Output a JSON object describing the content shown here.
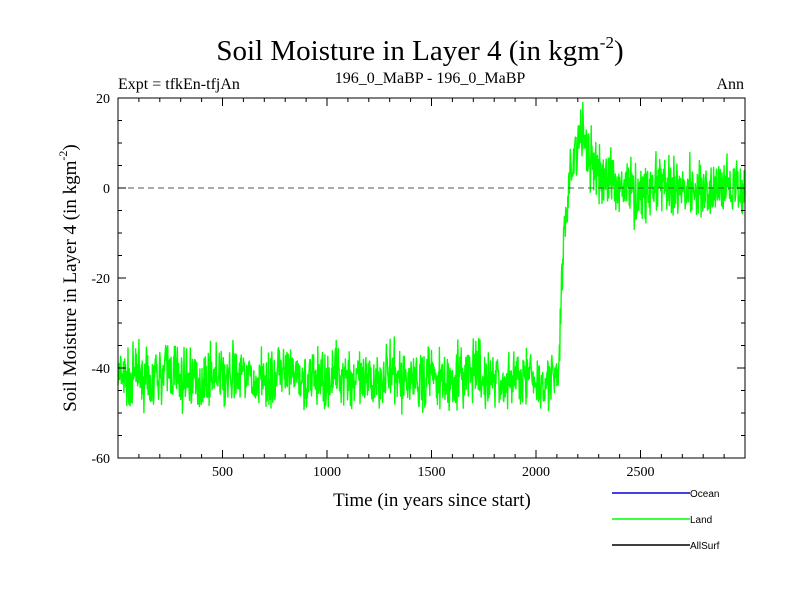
{
  "chart_data": {
    "type": "line",
    "title": "Soil Moisture in Layer 4 (in kgm",
    "title_sup": "-2",
    "title_close": ")",
    "subtitle": "196_0_MaBP - 196_0_MaBP",
    "left_note": "Expt = tfkEn-tfjAn",
    "right_note": "Ann",
    "xlabel": "Time (in years since start)",
    "ylabel": "Soil Moisture in Layer 4 (in kgm",
    "ylabel_sup": "-2",
    "ylabel_close": ")",
    "xlim": [
      0,
      3000
    ],
    "ylim": [
      -60,
      20
    ],
    "x_ticks": [
      500,
      1000,
      1500,
      2000,
      2500
    ],
    "y_ticks": [
      20,
      0,
      -20,
      -40,
      -60
    ],
    "reference_line": {
      "y": 0,
      "style": "dashed",
      "color": "#555555"
    },
    "legend_placement": "bottom-right",
    "series": [
      {
        "name": "Ocean",
        "color": "#0000dd",
        "x": [],
        "values": []
      },
      {
        "name": "Land",
        "color": "#00ff00",
        "x": [
          0,
          50,
          100,
          150,
          200,
          250,
          300,
          350,
          400,
          450,
          500,
          550,
          600,
          650,
          700,
          750,
          800,
          850,
          900,
          950,
          1000,
          1050,
          1100,
          1150,
          1200,
          1250,
          1300,
          1350,
          1400,
          1450,
          1500,
          1550,
          1600,
          1650,
          1700,
          1750,
          1800,
          1850,
          1900,
          1950,
          2000,
          2050,
          2080,
          2100,
          2110,
          2120,
          2130,
          2140,
          2150,
          2160,
          2170,
          2180,
          2200,
          2220,
          2240,
          2260,
          2280,
          2300,
          2350,
          2400,
          2450,
          2500,
          2550,
          2600,
          2650,
          2700,
          2750,
          2800,
          2850,
          2900,
          2950,
          3000
        ],
        "values": [
          -42,
          -43,
          -41,
          -44,
          -42,
          -40,
          -43,
          -42,
          -44,
          -41,
          -43,
          -42,
          -41,
          -44,
          -42,
          -43,
          -41,
          -42,
          -44,
          -42,
          -43,
          -41,
          -42,
          -43,
          -44,
          -42,
          -41,
          -43,
          -42,
          -44,
          -41,
          -43,
          -42,
          -42,
          -41,
          -43,
          -42,
          -44,
          -42,
          -41,
          -43,
          -42,
          -42,
          -44,
          -40,
          -25,
          -15,
          -8,
          -3,
          2,
          5,
          7,
          10,
          12,
          9,
          6,
          4,
          3,
          2,
          1,
          0,
          -1,
          0,
          1,
          -1,
          0,
          1,
          0,
          -1,
          1,
          0,
          -1
        ],
        "noise_amplitude": 4
      },
      {
        "name": "AllSurf",
        "color": "#000000",
        "x": [],
        "values": []
      }
    ]
  }
}
